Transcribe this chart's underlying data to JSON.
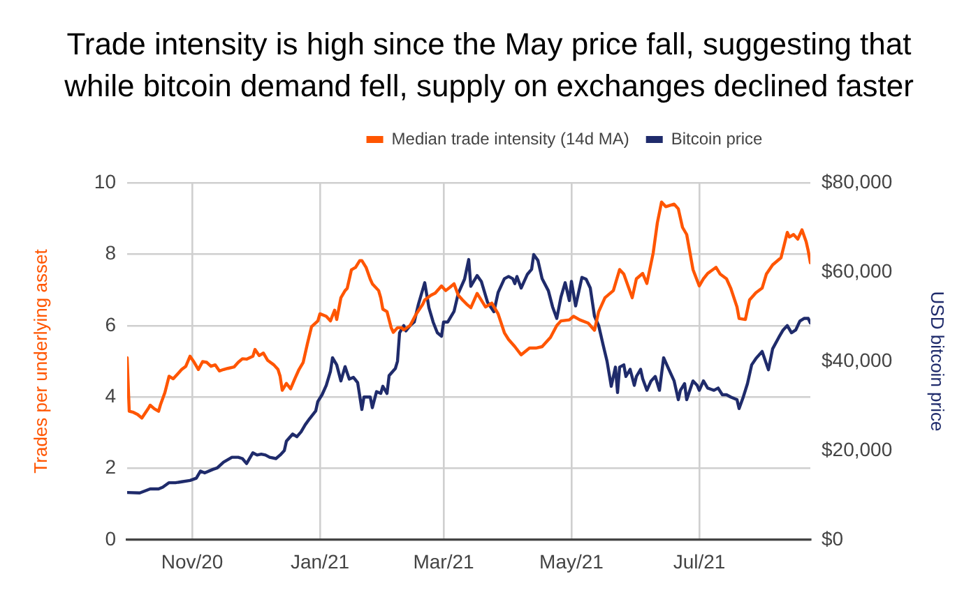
{
  "chart_data": {
    "type": "line",
    "title": "Trade intensity is high since the May price fall, suggesting that while bitcoin demand fell, supply on exchanges declined faster",
    "ylabel": "Trades per underlying asset",
    "y2label": "USD bitcoin price",
    "xlim": [
      "2020-10-01",
      "2021-08-23"
    ],
    "xticks": [
      {
        "value": "2020-11-01",
        "label": "Nov/20"
      },
      {
        "value": "2021-01-01",
        "label": "Jan/21"
      },
      {
        "value": "2021-03-01",
        "label": "Mar/21"
      },
      {
        "value": "2021-05-01",
        "label": "May/21"
      },
      {
        "value": "2021-07-01",
        "label": "Jul/21"
      }
    ],
    "ylim": [
      0,
      10
    ],
    "yticks": [
      0,
      2,
      4,
      6,
      8,
      10
    ],
    "y2lim": [
      0,
      80000
    ],
    "y2ticks": [
      {
        "value": 0,
        "label": "$0"
      },
      {
        "value": 20000,
        "label": "$20,000"
      },
      {
        "value": 40000,
        "label": "$40,000"
      },
      {
        "value": 60000,
        "label": "$60,000"
      },
      {
        "value": 80000,
        "label": "$80,000"
      }
    ],
    "grid": true,
    "legend": "top",
    "series": [
      {
        "name": "Median trade intensity (14d MA)",
        "color": "#ff5500",
        "x": [
          "2020-10-01",
          "2020-10-02",
          "2020-10-04",
          "2020-10-06",
          "2020-10-08",
          "2020-10-11",
          "2020-10-12",
          "2020-10-14",
          "2020-10-16",
          "2020-10-17",
          "2020-10-19",
          "2020-10-21",
          "2020-10-23",
          "2020-10-25",
          "2020-10-27",
          "2020-10-29",
          "2020-10-31",
          "2020-11-02",
          "2020-11-04",
          "2020-11-06",
          "2020-11-08",
          "2020-11-10",
          "2020-11-12",
          "2020-11-14",
          "2020-11-16",
          "2020-11-18",
          "2020-11-21",
          "2020-11-23",
          "2020-11-25",
          "2020-11-27",
          "2020-11-30",
          "2020-12-01",
          "2020-12-03",
          "2020-12-05",
          "2020-12-07",
          "2020-12-10",
          "2020-12-12",
          "2020-12-13",
          "2020-12-14",
          "2020-12-16",
          "2020-12-18",
          "2020-12-20",
          "2020-12-22",
          "2020-12-24",
          "2020-12-26",
          "2020-12-28",
          "2020-12-31",
          "2021-01-01",
          "2021-01-04",
          "2021-01-06",
          "2021-01-08",
          "2021-01-09",
          "2021-01-11",
          "2021-01-13",
          "2021-01-14",
          "2021-01-16",
          "2021-01-18",
          "2021-01-20",
          "2021-01-21",
          "2021-01-23",
          "2021-01-25",
          "2021-01-26",
          "2021-01-29",
          "2021-01-30",
          "2021-01-31",
          "2021-02-02",
          "2021-02-04",
          "2021-02-05",
          "2021-02-07",
          "2021-02-09",
          "2021-02-10",
          "2021-02-13",
          "2021-02-16",
          "2021-02-19",
          "2021-02-20",
          "2021-02-23",
          "2021-02-25",
          "2021-02-28",
          "2021-03-02",
          "2021-03-04",
          "2021-03-06",
          "2021-03-08",
          "2021-03-10",
          "2021-03-12",
          "2021-03-14",
          "2021-03-17",
          "2021-03-21",
          "2021-03-24",
          "2021-03-27",
          "2021-03-30",
          "2021-04-01",
          "2021-04-04",
          "2021-04-07",
          "2021-04-11",
          "2021-04-14",
          "2021-04-17",
          "2021-04-21",
          "2021-04-24",
          "2021-04-26",
          "2021-04-30",
          "2021-05-02",
          "2021-05-05",
          "2021-05-09",
          "2021-05-12",
          "2021-05-14",
          "2021-05-17",
          "2021-05-21",
          "2021-05-24",
          "2021-05-26",
          "2021-05-30",
          "2021-06-01",
          "2021-06-04",
          "2021-06-06",
          "2021-06-09",
          "2021-06-11",
          "2021-06-13",
          "2021-06-15",
          "2021-06-19",
          "2021-06-21",
          "2021-06-23",
          "2021-06-25",
          "2021-06-28",
          "2021-07-01",
          "2021-07-03",
          "2021-07-05",
          "2021-07-09",
          "2021-07-11",
          "2021-07-14",
          "2021-07-16",
          "2021-07-19",
          "2021-07-20",
          "2021-07-23",
          "2021-07-25",
          "2021-07-28",
          "2021-07-31",
          "2021-08-02",
          "2021-08-05",
          "2021-08-09",
          "2021-08-12",
          "2021-08-13",
          "2021-08-15",
          "2021-08-17",
          "2021-08-19",
          "2021-08-21",
          "2021-08-22",
          "2021-08-23"
        ],
        "values": [
          5.1,
          3.6,
          3.57,
          3.51,
          3.41,
          3.67,
          3.77,
          3.67,
          3.6,
          3.8,
          4.12,
          4.58,
          4.51,
          4.64,
          4.77,
          4.86,
          5.14,
          4.97,
          4.77,
          4.99,
          4.97,
          4.86,
          4.9,
          4.73,
          4.77,
          4.8,
          4.84,
          4.97,
          5.07,
          5.06,
          5.14,
          5.33,
          5.16,
          5.23,
          5.03,
          4.9,
          4.77,
          4.58,
          4.19,
          4.38,
          4.23,
          4.51,
          4.77,
          4.97,
          5.49,
          5.97,
          6.13,
          6.33,
          6.26,
          6.13,
          6.43,
          6.17,
          6.78,
          6.98,
          7.04,
          7.56,
          7.63,
          7.82,
          7.82,
          7.63,
          7.3,
          7.17,
          6.98,
          6.78,
          6.46,
          6.39,
          5.94,
          5.81,
          5.94,
          5.94,
          5.88,
          6.0,
          6.33,
          6.59,
          6.72,
          6.85,
          6.91,
          7.11,
          6.98,
          7.07,
          7.17,
          6.85,
          6.72,
          6.6,
          6.5,
          6.9,
          6.52,
          6.63,
          6.33,
          5.8,
          5.61,
          5.41,
          5.18,
          5.37,
          5.37,
          5.41,
          5.67,
          6.0,
          6.13,
          6.16,
          6.26,
          6.16,
          6.07,
          5.87,
          6.39,
          6.78,
          6.98,
          7.57,
          7.44,
          6.78,
          7.31,
          7.46,
          7.18,
          8.03,
          8.88,
          9.46,
          9.33,
          9.4,
          9.27,
          8.75,
          8.55,
          7.57,
          7.11,
          7.31,
          7.46,
          7.63,
          7.44,
          7.31,
          7.05,
          6.52,
          6.2,
          6.17,
          6.72,
          6.92,
          7.05,
          7.44,
          7.7,
          7.9,
          8.61,
          8.48,
          8.55,
          8.42,
          8.68,
          8.35,
          8.09,
          7.76
        ]
      },
      {
        "name": "Bitcoin price",
        "color": "#1f2b6b",
        "axis": "y2",
        "x": [
          "2020-10-01",
          "2020-10-07",
          "2020-10-12",
          "2020-10-16",
          "2020-10-18",
          "2020-10-21",
          "2020-10-24",
          "2020-10-27",
          "2020-10-31",
          "2020-11-03",
          "2020-11-05",
          "2020-11-07",
          "2020-11-11",
          "2020-11-13",
          "2020-11-16",
          "2020-11-20",
          "2020-11-23",
          "2020-11-25",
          "2020-11-27",
          "2020-11-30",
          "2020-12-02",
          "2020-12-04",
          "2020-12-06",
          "2020-12-08",
          "2020-12-11",
          "2020-12-13",
          "2020-12-15",
          "2020-12-16",
          "2020-12-19",
          "2020-12-21",
          "2020-12-23",
          "2020-12-25",
          "2020-12-27",
          "2020-12-30",
          "2020-12-31",
          "2021-01-02",
          "2021-01-04",
          "2021-01-06",
          "2021-01-07",
          "2021-01-09",
          "2021-01-11",
          "2021-01-13",
          "2021-01-15",
          "2021-01-17",
          "2021-01-19",
          "2021-01-21",
          "2021-01-22",
          "2021-01-25",
          "2021-01-26",
          "2021-01-28",
          "2021-01-30",
          "2021-01-31",
          "2021-02-02",
          "2021-02-03",
          "2021-02-06",
          "2021-02-07",
          "2021-02-08",
          "2021-02-10",
          "2021-02-11",
          "2021-02-13",
          "2021-02-15",
          "2021-02-17",
          "2021-02-19",
          "2021-02-20",
          "2021-02-22",
          "2021-02-24",
          "2021-02-26",
          "2021-02-28",
          "2021-03-01",
          "2021-03-03",
          "2021-03-06",
          "2021-03-08",
          "2021-03-11",
          "2021-03-13",
          "2021-03-14",
          "2021-03-17",
          "2021-03-19",
          "2021-03-22",
          "2021-03-25",
          "2021-03-27",
          "2021-03-30",
          "2021-04-01",
          "2021-04-03",
          "2021-04-04",
          "2021-04-05",
          "2021-04-07",
          "2021-04-10",
          "2021-04-12",
          "2021-04-13",
          "2021-04-15",
          "2021-04-17",
          "2021-04-20",
          "2021-04-22",
          "2021-04-24",
          "2021-04-26",
          "2021-04-28",
          "2021-04-30",
          "2021-05-01",
          "2021-05-03",
          "2021-05-06",
          "2021-05-08",
          "2021-05-10",
          "2021-05-12",
          "2021-05-14",
          "2021-05-16",
          "2021-05-18",
          "2021-05-20",
          "2021-05-22",
          "2021-05-23",
          "2021-05-24",
          "2021-05-26",
          "2021-05-27",
          "2021-05-29",
          "2021-05-31",
          "2021-06-01",
          "2021-06-03",
          "2021-06-04",
          "2021-06-06",
          "2021-06-08",
          "2021-06-10",
          "2021-06-12",
          "2021-06-14",
          "2021-06-16",
          "2021-06-19",
          "2021-06-21",
          "2021-06-22",
          "2021-06-24",
          "2021-06-25",
          "2021-06-28",
          "2021-06-30",
          "2021-07-01",
          "2021-07-03",
          "2021-07-05",
          "2021-07-08",
          "2021-07-10",
          "2021-07-12",
          "2021-07-14",
          "2021-07-16",
          "2021-07-19",
          "2021-07-20",
          "2021-07-22",
          "2021-07-24",
          "2021-07-26",
          "2021-07-28",
          "2021-07-31",
          "2021-08-03",
          "2021-08-05",
          "2021-08-08",
          "2021-08-10",
          "2021-08-12",
          "2021-08-14",
          "2021-08-16",
          "2021-08-18",
          "2021-08-20",
          "2021-08-22",
          "2021-08-23"
        ],
        "values": [
          10600,
          10500,
          11400,
          11400,
          11800,
          12800,
          12800,
          13000,
          13300,
          13800,
          15400,
          15000,
          15800,
          16100,
          17400,
          18500,
          18500,
          18200,
          17100,
          19500,
          19000,
          19200,
          19000,
          18500,
          18200,
          19000,
          20000,
          22100,
          23700,
          23100,
          24200,
          25800,
          27100,
          28900,
          31000,
          32500,
          34600,
          37700,
          40800,
          39200,
          35600,
          38800,
          36000,
          36400,
          35200,
          29200,
          32000,
          32000,
          29600,
          33200,
          32800,
          34400,
          32800,
          36800,
          38400,
          40000,
          46400,
          48000,
          46800,
          48000,
          48800,
          52800,
          56000,
          57600,
          52000,
          48800,
          46400,
          45600,
          48800,
          48800,
          51200,
          55200,
          58400,
          62800,
          56800,
          59200,
          57900,
          53200,
          51100,
          55400,
          58500,
          59000,
          58500,
          57400,
          59000,
          56400,
          59500,
          60600,
          63900,
          62600,
          58500,
          55800,
          52200,
          49600,
          54400,
          57600,
          53600,
          57900,
          52400,
          58800,
          58400,
          56400,
          50100,
          48000,
          43900,
          40000,
          34400,
          38700,
          33000,
          38700,
          39200,
          36600,
          38200,
          34600,
          36600,
          38200,
          36100,
          33500,
          35600,
          36600,
          33500,
          40800,
          38700,
          35600,
          31400,
          33500,
          35000,
          31400,
          35600,
          34600,
          33500,
          35600,
          34000,
          33500,
          34000,
          32500,
          32500,
          32000,
          31400,
          29400,
          32000,
          35000,
          39200,
          40600,
          42200,
          38100,
          42800,
          45400,
          47000,
          48000,
          46400,
          47000,
          49000,
          49600,
          49600,
          48600
        ]
      }
    ]
  }
}
